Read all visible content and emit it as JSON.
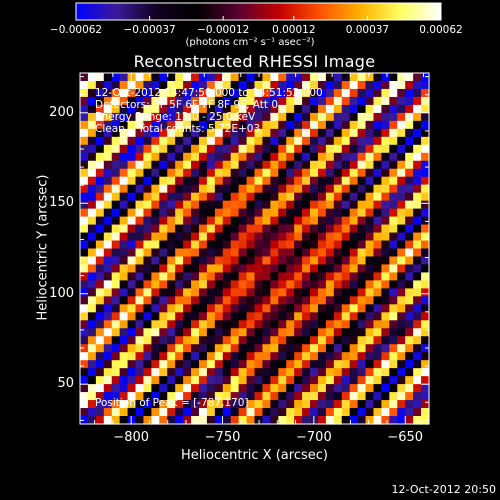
{
  "chart_data": {
    "type": "heatmap",
    "title": "Reconstructed RHESSI Image",
    "xlabel": "Heliocentric X (arcsec)",
    "ylabel": "Heliocentric Y (arcsec)",
    "xlim": [
      -828,
      -637
    ],
    "ylim": [
      28,
      222
    ],
    "x_ticks": [
      -800,
      -750,
      -700,
      -650
    ],
    "x_tick_labels": [
      "−800",
      "−750",
      "−700",
      "−650"
    ],
    "y_ticks": [
      50,
      100,
      150,
      200
    ],
    "y_tick_labels": [
      "50",
      "100",
      "150",
      "200"
    ],
    "grid_cols": 44,
    "grid_rows": 44,
    "colorbar": {
      "min": -0.00062,
      "max": 0.00062,
      "ticks": [
        -0.00062,
        -0.00037,
        -0.00012,
        0.00012,
        0.00037,
        0.00062
      ],
      "tick_labels": [
        "−0.00062",
        "−0.00037",
        "−0.00012",
        "0.00012",
        "0.00037",
        "0.00062"
      ],
      "unit_label": "(photons cm⁻² s⁻¹ asec⁻²)",
      "colors": [
        "#0000ff",
        "#3a1a9a",
        "#100020",
        "#000000",
        "#5a0030",
        "#c00000",
        "#ff5000",
        "#ffb000",
        "#ffff60",
        "#ffffff"
      ]
    },
    "pattern": {
      "description": "diagonal stripes from upper-left to lower-right",
      "stripe_period_cells": 5.6,
      "bright_edges": true,
      "dim_center": true
    },
    "annotations": {
      "line1": "12-Oct-2012 14:47:50.000 to 14:51:52.000",
      "line2": "Detectors: 3F 5F 6F 7F 8F 9F, Att 0",
      "line3": "Energy Range: 12.0 - 25.0 keV",
      "line4": "Clean    Total counts: 5.72E+03",
      "peak": "Position of Peak = [-787,170]"
    },
    "timestamp": "12-Oct-2012 20:50"
  }
}
